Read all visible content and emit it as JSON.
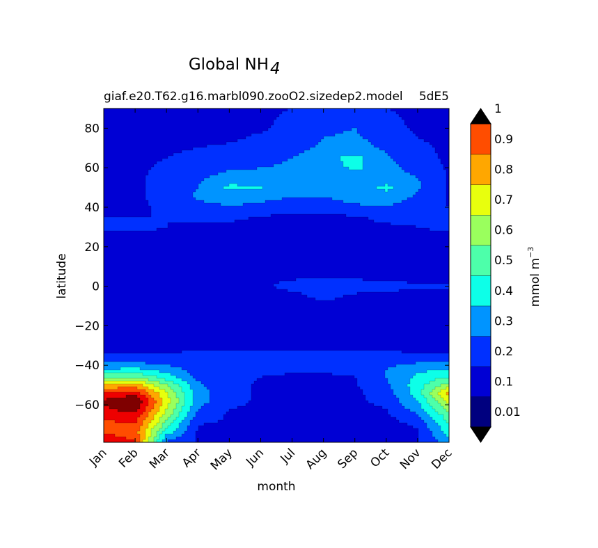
{
  "chart_data": {
    "type": "heatmap",
    "title_main": "Global NH",
    "title_subscript": "4",
    "subtitle_left": "giaf.e20.T62.g16.marbl090.zooO2.sizedep2.model",
    "subtitle_right": "5dE5",
    "xlabel": "month",
    "ylabel": "latitude",
    "x_ticks": [
      "Jan",
      "Feb",
      "Mar",
      "Apr",
      "May",
      "Jun",
      "Jul",
      "Aug",
      "Sep",
      "Oct",
      "Nov",
      "Dec"
    ],
    "y_ticks": [
      80,
      60,
      40,
      20,
      0,
      -20,
      -40,
      -60
    ],
    "ylim": [
      -79,
      90
    ],
    "colorbar": {
      "label": "mmol m",
      "label_superscript": "−3",
      "tick_labels": [
        "0.01",
        "0.1",
        "0.2",
        "0.3",
        "0.4",
        "0.5",
        "0.6",
        "0.7",
        "0.8",
        "0.9",
        "1"
      ],
      "levels": [
        0.01,
        0.1,
        0.2,
        0.3,
        0.4,
        0.5,
        0.6,
        0.7,
        0.8,
        0.9,
        1.0
      ],
      "colors": [
        "#00007f",
        "#0000d4",
        "#0030ff",
        "#0094ff",
        "#0dffe8",
        "#4dffaa",
        "#9aff5d",
        "#e8ff0d",
        "#ffa700",
        "#ff4d00",
        "#ee0000",
        "#7f0000"
      ],
      "extend": "both"
    },
    "values_grid": {
      "x": [
        0,
        1,
        2,
        3,
        4,
        5,
        6,
        7,
        8,
        9,
        10,
        11
      ],
      "lat": [
        -78,
        -74,
        -70,
        -66,
        -62,
        -58,
        -54,
        -50,
        -46,
        -42,
        -38,
        -34,
        -30,
        -25,
        -20,
        -15,
        -10,
        -5,
        0,
        5,
        10,
        15,
        20,
        25,
        30,
        35,
        40,
        45,
        50,
        55,
        60,
        65,
        70,
        75,
        80,
        85,
        90
      ],
      "z": [
        [
          0.95,
          0.9,
          0.2,
          0.09,
          0.09,
          0.09,
          0.05,
          0.03,
          0.03,
          0.03,
          0.09,
          0.25
        ],
        [
          0.9,
          0.85,
          0.35,
          0.09,
          0.09,
          0.09,
          0.05,
          0.02,
          0.02,
          0.04,
          0.09,
          0.35
        ],
        [
          0.85,
          0.9,
          0.45,
          0.1,
          0.09,
          0.09,
          0.06,
          0.03,
          0.03,
          0.06,
          0.12,
          0.4
        ],
        [
          0.95,
          0.95,
          0.55,
          0.15,
          0.09,
          0.09,
          0.07,
          0.05,
          0.05,
          0.08,
          0.18,
          0.45
        ],
        [
          0.98,
          1.05,
          0.6,
          0.2,
          0.1,
          0.09,
          0.08,
          0.07,
          0.07,
          0.1,
          0.25,
          0.55
        ],
        [
          1.02,
          1.1,
          0.65,
          0.25,
          0.12,
          0.09,
          0.09,
          0.08,
          0.08,
          0.13,
          0.3,
          0.65
        ],
        [
          0.9,
          0.95,
          0.6,
          0.25,
          0.12,
          0.09,
          0.09,
          0.08,
          0.08,
          0.15,
          0.35,
          0.75
        ],
        [
          0.7,
          0.75,
          0.5,
          0.22,
          0.12,
          0.09,
          0.09,
          0.09,
          0.09,
          0.18,
          0.35,
          0.55
        ],
        [
          0.5,
          0.5,
          0.35,
          0.18,
          0.12,
          0.1,
          0.09,
          0.09,
          0.1,
          0.2,
          0.32,
          0.4
        ],
        [
          0.3,
          0.32,
          0.25,
          0.15,
          0.12,
          0.12,
          0.11,
          0.11,
          0.12,
          0.2,
          0.28,
          0.3
        ],
        [
          0.18,
          0.18,
          0.16,
          0.14,
          0.13,
          0.13,
          0.13,
          0.12,
          0.13,
          0.16,
          0.18,
          0.18
        ],
        [
          0.1,
          0.1,
          0.1,
          0.11,
          0.11,
          0.11,
          0.12,
          0.11,
          0.11,
          0.11,
          0.1,
          0.1
        ],
        [
          0.08,
          0.08,
          0.08,
          0.08,
          0.08,
          0.08,
          0.08,
          0.08,
          0.08,
          0.08,
          0.08,
          0.08
        ],
        [
          0.08,
          0.08,
          0.08,
          0.08,
          0.08,
          0.08,
          0.08,
          0.08,
          0.08,
          0.08,
          0.08,
          0.08
        ],
        [
          0.08,
          0.08,
          0.08,
          0.08,
          0.08,
          0.08,
          0.08,
          0.08,
          0.08,
          0.08,
          0.08,
          0.08
        ],
        [
          0.08,
          0.08,
          0.08,
          0.08,
          0.08,
          0.08,
          0.08,
          0.08,
          0.08,
          0.08,
          0.08,
          0.08
        ],
        [
          0.08,
          0.08,
          0.08,
          0.08,
          0.08,
          0.08,
          0.08,
          0.08,
          0.08,
          0.08,
          0.08,
          0.08
        ],
        [
          0.08,
          0.08,
          0.08,
          0.08,
          0.08,
          0.08,
          0.08,
          0.12,
          0.09,
          0.08,
          0.08,
          0.08
        ],
        [
          0.08,
          0.08,
          0.08,
          0.08,
          0.08,
          0.09,
          0.12,
          0.13,
          0.13,
          0.12,
          0.11,
          0.11
        ],
        [
          0.08,
          0.08,
          0.08,
          0.08,
          0.08,
          0.08,
          0.09,
          0.09,
          0.09,
          0.08,
          0.08,
          0.08
        ],
        [
          0.08,
          0.08,
          0.08,
          0.08,
          0.08,
          0.08,
          0.08,
          0.08,
          0.08,
          0.08,
          0.08,
          0.08
        ],
        [
          0.08,
          0.08,
          0.08,
          0.08,
          0.08,
          0.08,
          0.08,
          0.08,
          0.08,
          0.08,
          0.08,
          0.08
        ],
        [
          0.08,
          0.08,
          0.08,
          0.08,
          0.08,
          0.08,
          0.08,
          0.08,
          0.08,
          0.08,
          0.08,
          0.08
        ],
        [
          0.09,
          0.09,
          0.09,
          0.08,
          0.08,
          0.08,
          0.08,
          0.08,
          0.08,
          0.08,
          0.09,
          0.09
        ],
        [
          0.11,
          0.11,
          0.1,
          0.09,
          0.08,
          0.08,
          0.08,
          0.08,
          0.08,
          0.09,
          0.1,
          0.11
        ],
        [
          0.1,
          0.1,
          0.1,
          0.12,
          0.12,
          0.09,
          0.08,
          0.08,
          0.09,
          0.12,
          0.11,
          0.1
        ],
        [
          0.09,
          0.09,
          0.11,
          0.16,
          0.19,
          0.18,
          0.15,
          0.14,
          0.18,
          0.2,
          0.14,
          0.1
        ],
        [
          0.08,
          0.09,
          0.12,
          0.22,
          0.25,
          0.22,
          0.2,
          0.2,
          0.24,
          0.26,
          0.18,
          0.09
        ],
        [
          0.09,
          0.09,
          0.12,
          0.2,
          0.32,
          0.31,
          0.22,
          0.22,
          0.25,
          0.32,
          0.22,
          0.09
        ],
        [
          0.09,
          0.09,
          0.12,
          0.18,
          0.25,
          0.25,
          0.22,
          0.22,
          0.25,
          0.25,
          0.2,
          0.09
        ],
        [
          0.09,
          0.09,
          0.11,
          0.14,
          0.18,
          0.2,
          0.22,
          0.25,
          0.32,
          0.25,
          0.15,
          0.09
        ],
        [
          0.09,
          0.09,
          0.1,
          0.12,
          0.14,
          0.16,
          0.2,
          0.27,
          0.33,
          0.22,
          0.12,
          0.09
        ],
        [
          0.09,
          0.09,
          0.09,
          0.1,
          0.11,
          0.13,
          0.16,
          0.22,
          0.25,
          0.18,
          0.11,
          0.09
        ],
        [
          0.09,
          0.09,
          0.09,
          0.09,
          0.09,
          0.11,
          0.14,
          0.2,
          0.22,
          0.15,
          0.1,
          0.09
        ],
        [
          0.04,
          0.05,
          0.09,
          0.09,
          0.09,
          0.09,
          0.12,
          0.18,
          0.2,
          0.12,
          0.09,
          0.09
        ],
        [
          0.03,
          0.04,
          0.06,
          0.09,
          0.09,
          0.09,
          0.11,
          0.16,
          0.18,
          0.11,
          0.09,
          0.09
        ],
        [
          0.05,
          0.05,
          0.07,
          0.09,
          0.09,
          0.09,
          0.1,
          0.15,
          0.17,
          0.1,
          0.09,
          0.09
        ]
      ]
    }
  }
}
